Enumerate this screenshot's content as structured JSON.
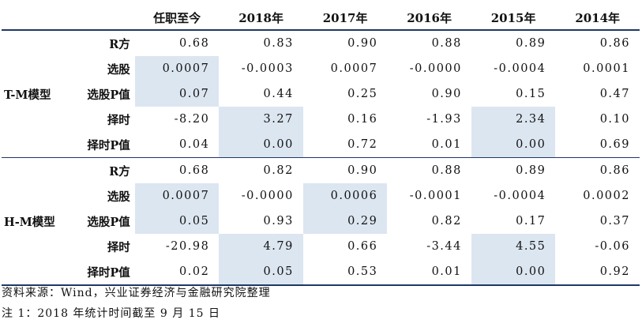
{
  "header": {
    "blank": "",
    "blank2": "",
    "cols": [
      "任职至今",
      "2018年",
      "2017年",
      "2016年",
      "2015年",
      "2014年"
    ]
  },
  "groups": [
    {
      "name": "T-M模型",
      "rows": [
        {
          "metric": "R方",
          "values": [
            "0.68",
            "0.83",
            "0.90",
            "0.88",
            "0.89",
            "0.86"
          ]
        },
        {
          "metric": "选股",
          "values": [
            "0.0007",
            "-0.0003",
            "0.0007",
            "-0.0000",
            "-0.0004",
            "0.0001"
          ]
        },
        {
          "metric": "选股P值",
          "values": [
            "0.07",
            "0.44",
            "0.25",
            "0.90",
            "0.15",
            "0.47"
          ]
        },
        {
          "metric": "择时",
          "values": [
            "-8.20",
            "3.27",
            "0.16",
            "-1.93",
            "2.34",
            "0.10"
          ]
        },
        {
          "metric": "择时P值",
          "values": [
            "0.04",
            "0.00",
            "0.72",
            "0.01",
            "0.00",
            "0.69"
          ]
        }
      ]
    },
    {
      "name": "H-M模型",
      "rows": [
        {
          "metric": "R方",
          "values": [
            "0.68",
            "0.82",
            "0.90",
            "0.88",
            "0.89",
            "0.86"
          ]
        },
        {
          "metric": "选股",
          "values": [
            "0.0007",
            "-0.0000",
            "0.0006",
            "-0.0001",
            "-0.0004",
            "0.0002"
          ]
        },
        {
          "metric": "选股P值",
          "values": [
            "0.05",
            "0.93",
            "0.29",
            "0.82",
            "0.17",
            "0.37"
          ]
        },
        {
          "metric": "择时",
          "values": [
            "-20.98",
            "4.79",
            "0.66",
            "-3.44",
            "4.55",
            "-0.06"
          ]
        },
        {
          "metric": "择时P值",
          "values": [
            "0.02",
            "0.05",
            "0.53",
            "0.01",
            "0.00",
            "0.92"
          ]
        }
      ]
    }
  ],
  "notes": {
    "source": "资料来源：Wind，兴业证券经济与金融研究院整理",
    "note1": "注 1：2018 年统计时间截至 9 月 15 日"
  },
  "colors": {
    "highlight": "#dce6f1",
    "rule": "#1f3864"
  }
}
